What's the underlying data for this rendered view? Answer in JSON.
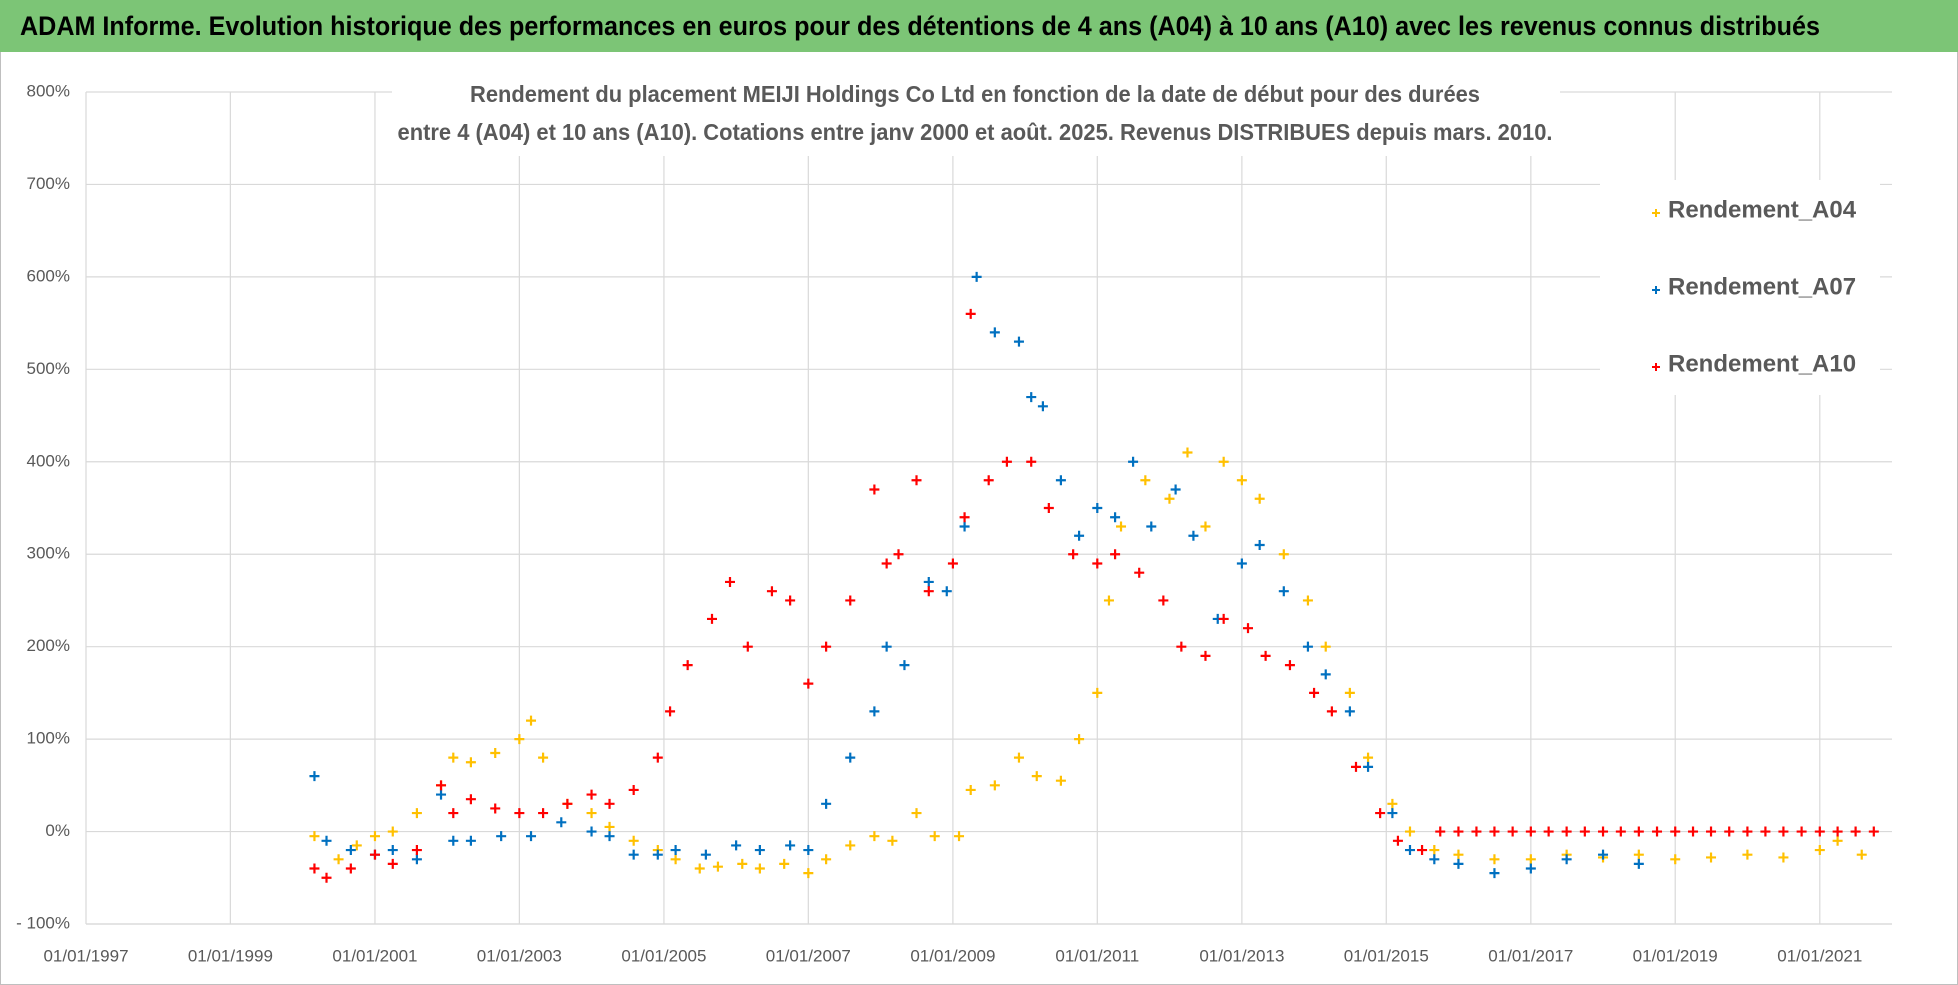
{
  "header": {
    "title": "ADAM Informe. Evolution historique des performances en euros pour des détentions de 4 ans (A04) à 10 ans (A10) avec les revenus connus distribués"
  },
  "chart_data": {
    "type": "scatter",
    "title": [
      "Rendement du placement MEIJI Holdings Co Ltd en fonction de la date de début pour des durées",
      "entre 4 (A04) et 10 ans (A10). Cotations entre janv 2000 et août. 2025. Revenus DISTRIBUES depuis mars. 2010."
    ],
    "xlim": [
      "1997-01-01",
      "2022-01-01"
    ],
    "xticks": [
      {
        "value": "1997-01-01",
        "label": "01/01/1997"
      },
      {
        "value": "1999-01-01",
        "label": "01/01/1999"
      },
      {
        "value": "2001-01-01",
        "label": "01/01/2001"
      },
      {
        "value": "2003-01-01",
        "label": "01/01/2003"
      },
      {
        "value": "2005-01-01",
        "label": "01/01/2005"
      },
      {
        "value": "2007-01-01",
        "label": "01/01/2007"
      },
      {
        "value": "2009-01-01",
        "label": "01/01/2009"
      },
      {
        "value": "2011-01-01",
        "label": "01/01/2011"
      },
      {
        "value": "2013-01-01",
        "label": "01/01/2013"
      },
      {
        "value": "2015-01-01",
        "label": "01/01/2015"
      },
      {
        "value": "2017-01-01",
        "label": "01/01/2017"
      },
      {
        "value": "2019-01-01",
        "label": "01/01/2019"
      },
      {
        "value": "2021-01-01",
        "label": "01/01/2021"
      }
    ],
    "ylim": [
      -100,
      800
    ],
    "yticks": [
      {
        "value": -100,
        "label": "- 100%"
      },
      {
        "value": 0,
        "label": "0%"
      },
      {
        "value": 100,
        "label": "100%"
      },
      {
        "value": 200,
        "label": "200%"
      },
      {
        "value": 300,
        "label": "300%"
      },
      {
        "value": 400,
        "label": "400%"
      },
      {
        "value": 500,
        "label": "500%"
      },
      {
        "value": 600,
        "label": "600%"
      },
      {
        "value": 700,
        "label": "700%"
      },
      {
        "value": 800,
        "label": "800%"
      }
    ],
    "grid": true,
    "legend": "right",
    "series": [
      {
        "name": "Rendement_A04",
        "color": "#ffc000",
        "x": [
          "2000-03-01",
          "2000-07-01",
          "2000-10-01",
          "2001-01-01",
          "2001-04-01",
          "2001-08-01",
          "2001-12-01",
          "2002-02-01",
          "2002-05-01",
          "2002-09-01",
          "2003-01-01",
          "2003-03-01",
          "2003-05-01",
          "2003-09-01",
          "2004-01-01",
          "2004-04-01",
          "2004-08-01",
          "2004-12-01",
          "2005-03-01",
          "2005-07-01",
          "2005-10-01",
          "2006-02-01",
          "2006-05-01",
          "2006-09-01",
          "2007-01-01",
          "2007-04-01",
          "2007-08-01",
          "2007-12-01",
          "2008-03-01",
          "2008-07-01",
          "2008-10-01",
          "2009-02-01",
          "2009-04-01",
          "2009-08-01",
          "2009-12-01",
          "2010-03-01",
          "2010-07-01",
          "2010-10-01",
          "2011-01-01",
          "2011-03-01",
          "2011-05-01",
          "2011-09-01",
          "2012-01-01",
          "2012-04-01",
          "2012-07-01",
          "2012-10-01",
          "2013-01-01",
          "2013-04-01",
          "2013-08-01",
          "2013-12-01",
          "2014-03-01",
          "2014-07-01",
          "2014-10-01",
          "2015-02-01",
          "2015-05-01",
          "2015-09-01",
          "2016-01-01",
          "2016-07-01",
          "2017-01-01",
          "2017-07-01",
          "2018-01-01",
          "2018-07-01",
          "2019-01-01",
          "2019-07-01",
          "2020-01-01",
          "2020-07-01",
          "2021-01-01",
          "2021-04-01",
          "2021-08-01"
        ],
        "values": [
          -5,
          -30,
          -15,
          -5,
          0,
          20,
          50,
          80,
          75,
          85,
          100,
          120,
          80,
          30,
          20,
          5,
          -10,
          -20,
          -30,
          -40,
          -38,
          -35,
          -40,
          -35,
          -45,
          -30,
          -15,
          -5,
          -10,
          20,
          -5,
          -5,
          45,
          50,
          80,
          60,
          55,
          100,
          150,
          250,
          330,
          380,
          360,
          410,
          330,
          400,
          380,
          360,
          300,
          250,
          200,
          150,
          80,
          30,
          0,
          -20,
          -25,
          -30,
          -30,
          -25,
          -28,
          -25,
          -30,
          -28,
          -25,
          -28,
          -20,
          -10,
          -25
        ]
      },
      {
        "name": "Rendement_A07",
        "color": "#0070c0",
        "x": [
          "2000-03-01",
          "2000-05-01",
          "2000-09-01",
          "2001-01-01",
          "2001-04-01",
          "2001-08-01",
          "2001-12-01",
          "2002-02-01",
          "2002-05-01",
          "2002-10-01",
          "2003-03-01",
          "2003-08-01",
          "2004-01-01",
          "2004-04-01",
          "2004-08-01",
          "2004-12-01",
          "2005-03-01",
          "2005-08-01",
          "2006-01-01",
          "2006-05-01",
          "2006-10-01",
          "2007-01-01",
          "2007-04-01",
          "2007-08-01",
          "2007-12-01",
          "2008-02-01",
          "2008-05-01",
          "2008-09-01",
          "2008-12-01",
          "2009-03-01",
          "2009-05-01",
          "2009-08-01",
          "2009-12-01",
          "2010-02-01",
          "2010-04-01",
          "2010-07-01",
          "2010-10-01",
          "2011-01-01",
          "2011-04-01",
          "2011-07-01",
          "2011-10-01",
          "2012-02-01",
          "2012-05-01",
          "2012-09-01",
          "2013-01-01",
          "2013-04-01",
          "2013-08-01",
          "2013-12-01",
          "2014-03-01",
          "2014-07-01",
          "2014-10-01",
          "2015-02-01",
          "2015-05-01",
          "2015-09-01",
          "2016-01-01",
          "2016-07-01",
          "2017-01-01",
          "2017-07-01",
          "2018-01-01",
          "2018-07-01"
        ],
        "values": [
          60,
          -10,
          -20,
          -25,
          -20,
          -30,
          40,
          -10,
          -10,
          -5,
          -5,
          10,
          0,
          -5,
          -25,
          -25,
          -20,
          -25,
          -15,
          -20,
          -15,
          -20,
          30,
          80,
          130,
          200,
          180,
          270,
          260,
          330,
          600,
          540,
          530,
          470,
          460,
          380,
          320,
          350,
          340,
          400,
          330,
          370,
          320,
          230,
          290,
          310,
          260,
          200,
          170,
          130,
          70,
          20,
          -20,
          -30,
          -35,
          -45,
          -40,
          -30,
          -25,
          -35
        ]
      },
      {
        "name": "Rendement_A10",
        "color": "#ff0000",
        "x": [
          "2000-03-01",
          "2000-05-01",
          "2000-09-01",
          "2001-01-01",
          "2001-04-01",
          "2001-08-01",
          "2001-12-01",
          "2002-02-01",
          "2002-05-01",
          "2002-09-01",
          "2003-01-01",
          "2003-05-01",
          "2003-09-01",
          "2004-01-01",
          "2004-04-01",
          "2004-08-01",
          "2004-12-01",
          "2005-02-01",
          "2005-05-01",
          "2005-09-01",
          "2005-12-01",
          "2006-03-01",
          "2006-07-01",
          "2006-10-01",
          "2007-01-01",
          "2007-04-01",
          "2007-08-01",
          "2007-12-01",
          "2008-02-01",
          "2008-04-01",
          "2008-07-01",
          "2008-09-01",
          "2009-01-01",
          "2009-03-01",
          "2009-04-01",
          "2009-07-01",
          "2009-10-01",
          "2010-02-01",
          "2010-05-01",
          "2010-09-01",
          "2011-01-01",
          "2011-04-01",
          "2011-08-01",
          "2011-12-01",
          "2012-03-01",
          "2012-07-01",
          "2012-10-01",
          "2013-02-01",
          "2013-05-01",
          "2013-09-01",
          "2014-01-01",
          "2014-04-01",
          "2014-08-01",
          "2014-12-01",
          "2015-03-01",
          "2015-07-01",
          "2015-10-01",
          "2016-01-01",
          "2016-04-01",
          "2016-07-01",
          "2016-10-01",
          "2017-01-01",
          "2017-04-01",
          "2017-07-01",
          "2017-10-01",
          "2018-01-01",
          "2018-04-01",
          "2018-07-01",
          "2018-10-01",
          "2019-01-01",
          "2019-04-01",
          "2019-07-01",
          "2019-10-01",
          "2020-01-01",
          "2020-04-01",
          "2020-07-01",
          "2020-10-01",
          "2021-01-01",
          "2021-04-01",
          "2021-07-01",
          "2021-10-01"
        ],
        "values": [
          -40,
          -50,
          -40,
          -25,
          -35,
          -20,
          50,
          20,
          35,
          25,
          20,
          20,
          30,
          40,
          30,
          45,
          80,
          130,
          180,
          230,
          270,
          200,
          260,
          250,
          160,
          200,
          250,
          370,
          290,
          300,
          380,
          260,
          290,
          340,
          560,
          380,
          400,
          400,
          350,
          300,
          290,
          300,
          280,
          250,
          200,
          190,
          230,
          220,
          190,
          180,
          150,
          130,
          70,
          20,
          -10,
          -20,
          0,
          0,
          0,
          0,
          0,
          0,
          0,
          0,
          0,
          0,
          0,
          0,
          0,
          0,
          0,
          0,
          0,
          0,
          0,
          0,
          0,
          0,
          0,
          0,
          0
        ]
      }
    ]
  }
}
